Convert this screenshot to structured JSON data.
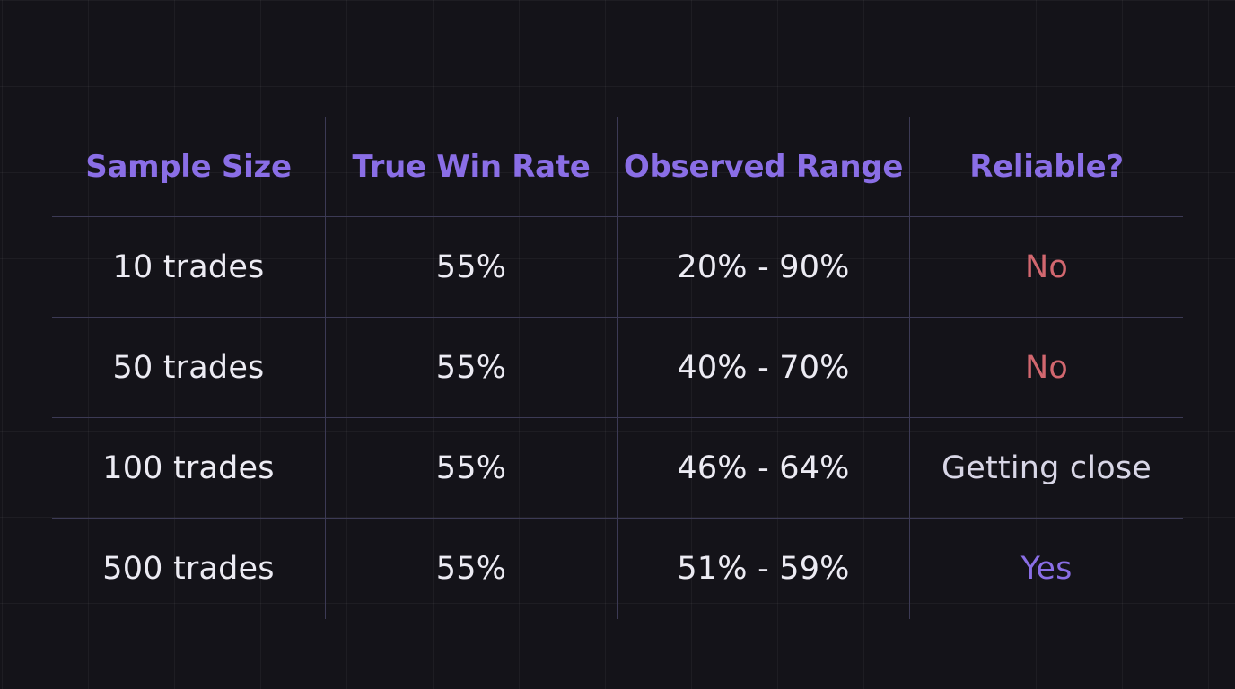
{
  "table": {
    "headers": [
      "Sample Size",
      "True Win Rate",
      "Observed Range",
      "Reliable?"
    ],
    "rows": [
      {
        "sample_size": "10 trades",
        "true_win_rate": "55%",
        "observed_range": "20% - 90%",
        "reliable": "No"
      },
      {
        "sample_size": "50 trades",
        "true_win_rate": "55%",
        "observed_range": "40% - 70%",
        "reliable": "No"
      },
      {
        "sample_size": "100 trades",
        "true_win_rate": "55%",
        "observed_range": "46% - 64%",
        "reliable": "Getting close"
      },
      {
        "sample_size": "500 trades",
        "true_win_rate": "55%",
        "observed_range": "51% - 59%",
        "reliable": "Yes"
      }
    ]
  },
  "colors": {
    "background": "#141319",
    "header_text": "#8a6ee6",
    "body_text": "#ecebf3",
    "reliable_no": "#d2676f",
    "reliable_close": "#d8d6e6",
    "reliable_yes": "#8a6ee6",
    "rule_line": "#3c3a55"
  }
}
